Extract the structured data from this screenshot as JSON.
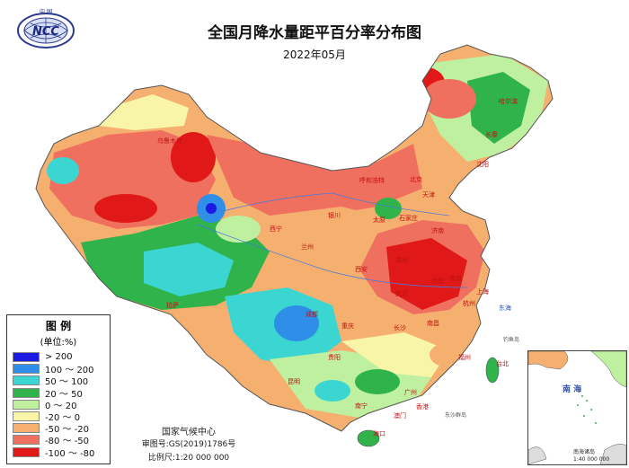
{
  "map": {
    "title": "全国月降水量距平百分率分布图",
    "subtitle": "2022年05月",
    "logo_text": "NCC",
    "logo_top_text": "中 国",
    "legend": {
      "title": "图 例",
      "unit": "(单位:%)",
      "items": [
        {
          "label": "> 200",
          "color": "#1a1ae0"
        },
        {
          "label": "100 ～ 200",
          "color": "#2e8ee8"
        },
        {
          "label": "50 ～ 100",
          "color": "#3cd6d2"
        },
        {
          "label": "20 ～ 50",
          "color": "#2fb34a"
        },
        {
          "label": "0 ～ 20",
          "color": "#bff0a0"
        },
        {
          "label": "-20 ～ 0",
          "color": "#f8f4a8"
        },
        {
          "label": "-50 ～ -20",
          "color": "#f5b070"
        },
        {
          "label": "-80 ～ -50",
          "color": "#f07060"
        },
        {
          "label": "-100 ～ -80",
          "color": "#e01818"
        }
      ]
    },
    "footer": {
      "center": "国家气候中心",
      "approval": "审图号:GS(2019)1786号",
      "scale": "比例尺:1:20 000 000"
    },
    "inset": {
      "title": "南 海",
      "caption": "南海诸岛",
      "scale": "1:40 000 000"
    },
    "cities": [
      "哈尔滨",
      "长春",
      "沈阳",
      "呼和浩特",
      "北京",
      "天津",
      "石家庄",
      "太原",
      "银川",
      "兰州",
      "西宁",
      "西宁",
      "济南",
      "郑州",
      "合肥",
      "南京",
      "上海",
      "武汉",
      "杭州",
      "南昌",
      "长沙",
      "福州",
      "台北",
      "贵阳",
      "昆明",
      "南宁",
      "广州",
      "香港",
      "澳门",
      "海口",
      "成都",
      "重庆",
      "拉萨",
      "乌鲁木齐",
      "西安"
    ],
    "labels": {
      "east_sea": "东海",
      "south_sea_islands": "东沙群岛",
      "diaoyu": "钓鱼岛"
    }
  }
}
